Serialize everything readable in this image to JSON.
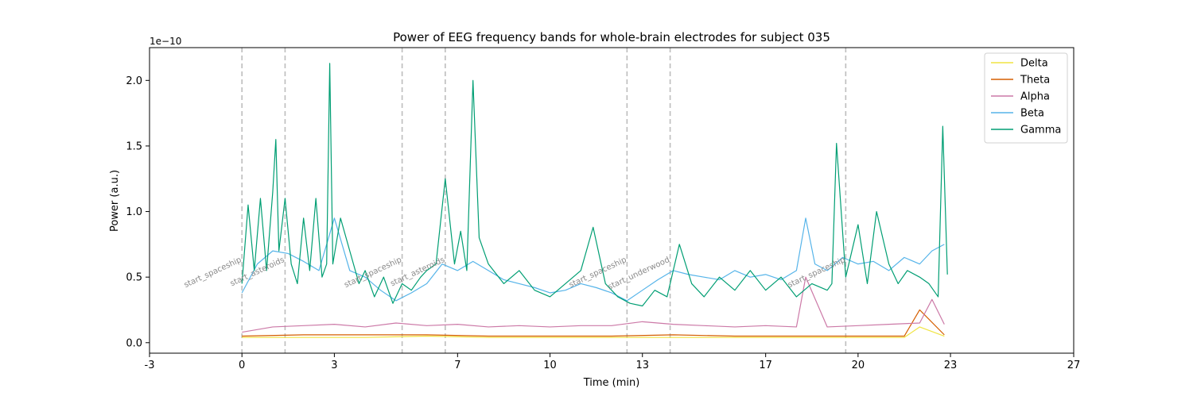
{
  "chart_data": {
    "type": "line",
    "title": "Power of EEG frequency bands for whole-brain electrodes for subject 035",
    "xlabel": "Time (min)",
    "ylabel": "Power (a.u.)",
    "y_offset_label": "1e−10",
    "xlim": [
      -3,
      27
    ],
    "ylim": [
      -0.08,
      2.25
    ],
    "x_ticks": [
      -3,
      0,
      3,
      7,
      10,
      13,
      17,
      20,
      23,
      27
    ],
    "x_tick_labels": [
      "-3",
      "0",
      "3",
      "7",
      "10",
      "13",
      "17",
      "20",
      "23",
      "27"
    ],
    "y_ticks": [
      0.0,
      0.5,
      1.0,
      1.5,
      2.0
    ],
    "y_tick_labels": [
      "0.0",
      "0.5",
      "1.0",
      "1.5",
      "2.0"
    ],
    "grid": false,
    "legend_position": "top-right",
    "events": [
      {
        "x": 0.0,
        "label": "start_spaceship"
      },
      {
        "x": 1.4,
        "label": "start_asteroids"
      },
      {
        "x": 5.2,
        "label": "start_spaceship"
      },
      {
        "x": 6.6,
        "label": "start_asteroids"
      },
      {
        "x": 12.5,
        "label": "start_spaceship"
      },
      {
        "x": 13.9,
        "label": "start_underwood"
      },
      {
        "x": 19.6,
        "label": "start_spaceship"
      }
    ],
    "series": [
      {
        "name": "Delta",
        "color": "#F0E442",
        "x": [
          0,
          2,
          4,
          6,
          8,
          10,
          12,
          14,
          16,
          18,
          20,
          21.5,
          22.0,
          22.8
        ],
        "y": [
          0.04,
          0.04,
          0.04,
          0.05,
          0.04,
          0.04,
          0.04,
          0.04,
          0.04,
          0.04,
          0.04,
          0.04,
          0.12,
          0.05
        ]
      },
      {
        "name": "Theta",
        "color": "#D55E00",
        "x": [
          0,
          2,
          4,
          6,
          8,
          10,
          12,
          14,
          16,
          18,
          20,
          21.5,
          22.0,
          22.8
        ],
        "y": [
          0.05,
          0.06,
          0.06,
          0.06,
          0.05,
          0.05,
          0.05,
          0.06,
          0.05,
          0.05,
          0.05,
          0.05,
          0.25,
          0.06
        ]
      },
      {
        "name": "Alpha",
        "color": "#CC79A7",
        "x": [
          0,
          1,
          2,
          3,
          4,
          5,
          6,
          7,
          8,
          9,
          10,
          11,
          12,
          13,
          14,
          15,
          16,
          17,
          18.0,
          18.3,
          19,
          20,
          21,
          22.0,
          22.4,
          22.8
        ],
        "y": [
          0.08,
          0.12,
          0.13,
          0.14,
          0.12,
          0.15,
          0.13,
          0.14,
          0.12,
          0.13,
          0.12,
          0.13,
          0.13,
          0.16,
          0.14,
          0.13,
          0.12,
          0.13,
          0.12,
          0.5,
          0.12,
          0.13,
          0.14,
          0.15,
          0.33,
          0.14
        ]
      },
      {
        "name": "Beta",
        "color": "#56B4E9",
        "x": [
          0,
          0.5,
          1,
          1.5,
          2,
          2.5,
          3,
          3.5,
          4,
          4.5,
          5,
          5.5,
          6,
          6.5,
          7,
          7.5,
          8,
          8.5,
          9,
          9.5,
          10,
          10.5,
          11,
          11.5,
          12,
          12.5,
          13,
          13.5,
          14,
          14.5,
          15,
          15.5,
          16,
          16.5,
          17,
          17.5,
          18,
          18.3,
          18.6,
          19,
          19.5,
          20,
          20.5,
          21,
          21.5,
          22,
          22.4,
          22.8
        ],
        "y": [
          0.38,
          0.6,
          0.7,
          0.68,
          0.62,
          0.55,
          0.95,
          0.55,
          0.5,
          0.4,
          0.32,
          0.38,
          0.45,
          0.6,
          0.55,
          0.62,
          0.55,
          0.48,
          0.45,
          0.42,
          0.38,
          0.4,
          0.45,
          0.42,
          0.38,
          0.32,
          0.4,
          0.48,
          0.55,
          0.52,
          0.5,
          0.48,
          0.55,
          0.5,
          0.52,
          0.48,
          0.55,
          0.95,
          0.6,
          0.55,
          0.65,
          0.6,
          0.62,
          0.55,
          0.65,
          0.6,
          0.7,
          0.75
        ]
      },
      {
        "name": "Gamma",
        "color": "#009E73",
        "x": [
          0,
          0.2,
          0.4,
          0.6,
          0.8,
          1.0,
          1.1,
          1.2,
          1.4,
          1.6,
          1.8,
          2.0,
          2.2,
          2.4,
          2.6,
          2.75,
          2.85,
          2.95,
          3.2,
          3.5,
          3.8,
          4.0,
          4.3,
          4.6,
          4.9,
          5.2,
          5.5,
          5.8,
          6.0,
          6.3,
          6.6,
          6.9,
          7.1,
          7.3,
          7.5,
          7.7,
          8.0,
          8.5,
          9.0,
          9.5,
          10.0,
          10.5,
          11.0,
          11.4,
          11.8,
          12.2,
          12.6,
          13.0,
          13.4,
          13.8,
          14.2,
          14.6,
          15.0,
          15.5,
          16.0,
          16.5,
          17.0,
          17.5,
          18.0,
          18.5,
          19.0,
          19.15,
          19.3,
          19.6,
          20.0,
          20.3,
          20.6,
          21.0,
          21.3,
          21.6,
          22.0,
          22.3,
          22.6,
          22.75,
          22.9
        ],
        "y": [
          0.45,
          1.05,
          0.55,
          1.1,
          0.55,
          1.15,
          1.55,
          0.7,
          1.1,
          0.6,
          0.45,
          0.95,
          0.55,
          1.1,
          0.5,
          0.6,
          2.13,
          0.6,
          0.95,
          0.7,
          0.45,
          0.55,
          0.35,
          0.5,
          0.3,
          0.45,
          0.4,
          0.5,
          0.55,
          0.6,
          1.25,
          0.6,
          0.85,
          0.55,
          2.0,
          0.8,
          0.6,
          0.45,
          0.55,
          0.4,
          0.35,
          0.45,
          0.55,
          0.88,
          0.45,
          0.35,
          0.3,
          0.28,
          0.4,
          0.35,
          0.75,
          0.45,
          0.35,
          0.5,
          0.4,
          0.55,
          0.4,
          0.5,
          0.35,
          0.45,
          0.4,
          0.45,
          1.52,
          0.5,
          0.9,
          0.45,
          1.0,
          0.6,
          0.45,
          0.55,
          0.5,
          0.45,
          0.35,
          1.65,
          0.52
        ]
      }
    ]
  }
}
